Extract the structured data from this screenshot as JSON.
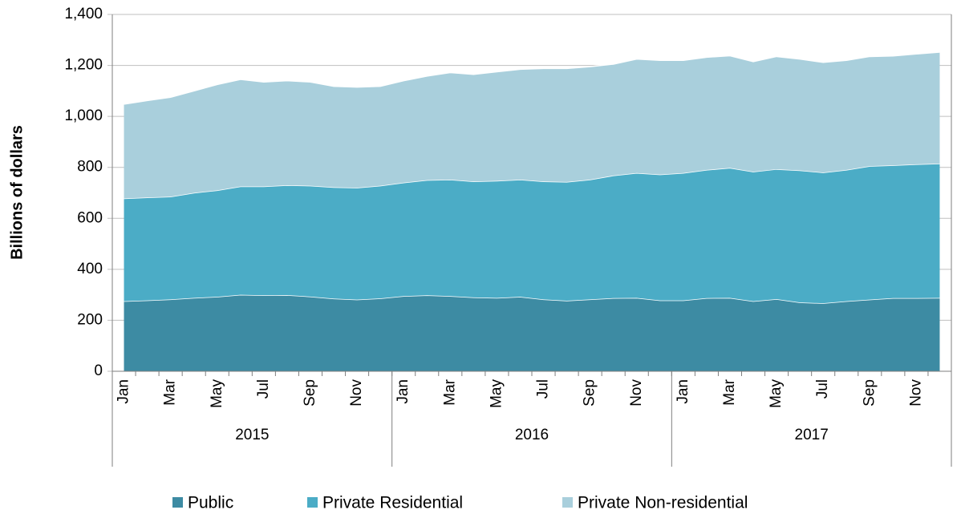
{
  "chart_data": {
    "type": "area",
    "stacked": true,
    "y_label": "Billions of dollars",
    "categories": [
      "Jan",
      null,
      "Mar",
      null,
      "May",
      null,
      "Jul",
      null,
      "Sep",
      null,
      "Nov",
      null,
      "Jan",
      null,
      "Mar",
      null,
      "May",
      null,
      "Jul",
      null,
      "Sep",
      null,
      "Nov",
      null,
      "Jan",
      null,
      "Mar",
      null,
      "May",
      null,
      "Jul",
      null,
      "Sep",
      null,
      "Nov",
      null
    ],
    "years": [
      "2015",
      "2016",
      "2017"
    ],
    "series": [
      {
        "name": "Public",
        "color": "#3d8ba3",
        "values": [
          275,
          278,
          282,
          288,
          292,
          300,
          298,
          299,
          293,
          285,
          281,
          286,
          295,
          298,
          295,
          290,
          288,
          292,
          282,
          277,
          282,
          287,
          288,
          278,
          278,
          287,
          288,
          275,
          283,
          270,
          267,
          275,
          281,
          287,
          287,
          288
        ]
      },
      {
        "name": "Private Residential",
        "color": "#4bacc6",
        "values": [
          403,
          404,
          403,
          412,
          418,
          425,
          427,
          431,
          435,
          437,
          439,
          442,
          445,
          452,
          457,
          455,
          459,
          460,
          463,
          466,
          470,
          481,
          490,
          494,
          500,
          503,
          510,
          508,
          510,
          518,
          513,
          515,
          524,
          521,
          525,
          527
        ]
      },
      {
        "name": "Private Non-residential",
        "color": "#a9cfdc",
        "values": [
          370,
          380,
          390,
          400,
          415,
          420,
          410,
          410,
          407,
          396,
          395,
          390,
          400,
          408,
          420,
          420,
          428,
          433,
          443,
          445,
          443,
          437,
          447,
          448,
          442,
          442,
          440,
          432,
          442,
          437,
          432,
          430,
          430,
          429,
          433,
          437
        ]
      }
    ],
    "ylim": [
      0,
      1400
    ],
    "yticks": [
      0,
      200,
      400,
      600,
      {
        "value": 800,
        "label": "800"
      },
      {
        "value": 1000,
        "label": "1,000"
      },
      {
        "value": 1200,
        "label": "1,200"
      },
      {
        "value": 1400,
        "label": "1,400"
      }
    ],
    "grid": true
  }
}
